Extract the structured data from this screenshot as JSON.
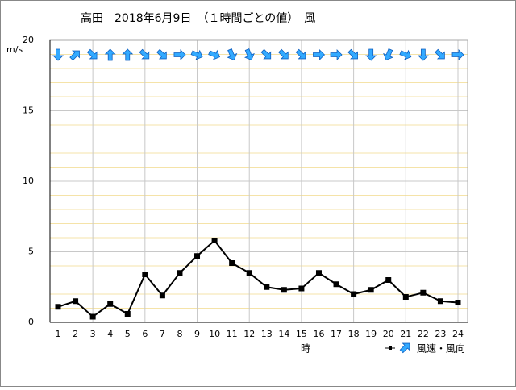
{
  "chart_data": {
    "type": "line",
    "title": "高田　2018年6月9日　（１時間ごとの値）　風",
    "y_label": "m/s",
    "x_label": "時",
    "categories": [
      "1",
      "2",
      "3",
      "4",
      "5",
      "6",
      "7",
      "8",
      "9",
      "10",
      "11",
      "12",
      "13",
      "14",
      "15",
      "16",
      "17",
      "18",
      "19",
      "20",
      "21",
      "22",
      "23",
      "24"
    ],
    "series": [
      {
        "name": "風速・風向",
        "color": "#000000",
        "arrow_color": "#33aaff",
        "values": [
          1.1,
          1.5,
          0.4,
          1.3,
          0.6,
          3.4,
          1.9,
          3.5,
          4.7,
          5.8,
          4.2,
          3.5,
          2.5,
          2.3,
          2.4,
          3.5,
          2.7,
          2.0,
          2.3,
          3.0,
          1.8,
          2.1,
          1.5,
          1.4
        ],
        "directions": [
          180,
          45,
          135,
          0,
          0,
          135,
          135,
          90,
          112.5,
          112.5,
          157.5,
          157.5,
          135,
          135,
          135,
          90,
          90,
          135,
          180,
          202.5,
          112.5,
          180,
          135,
          90
        ]
      }
    ],
    "ylim": [
      0,
      20
    ],
    "yticks": [
      0,
      5,
      10,
      15,
      20
    ],
    "grid": true
  }
}
